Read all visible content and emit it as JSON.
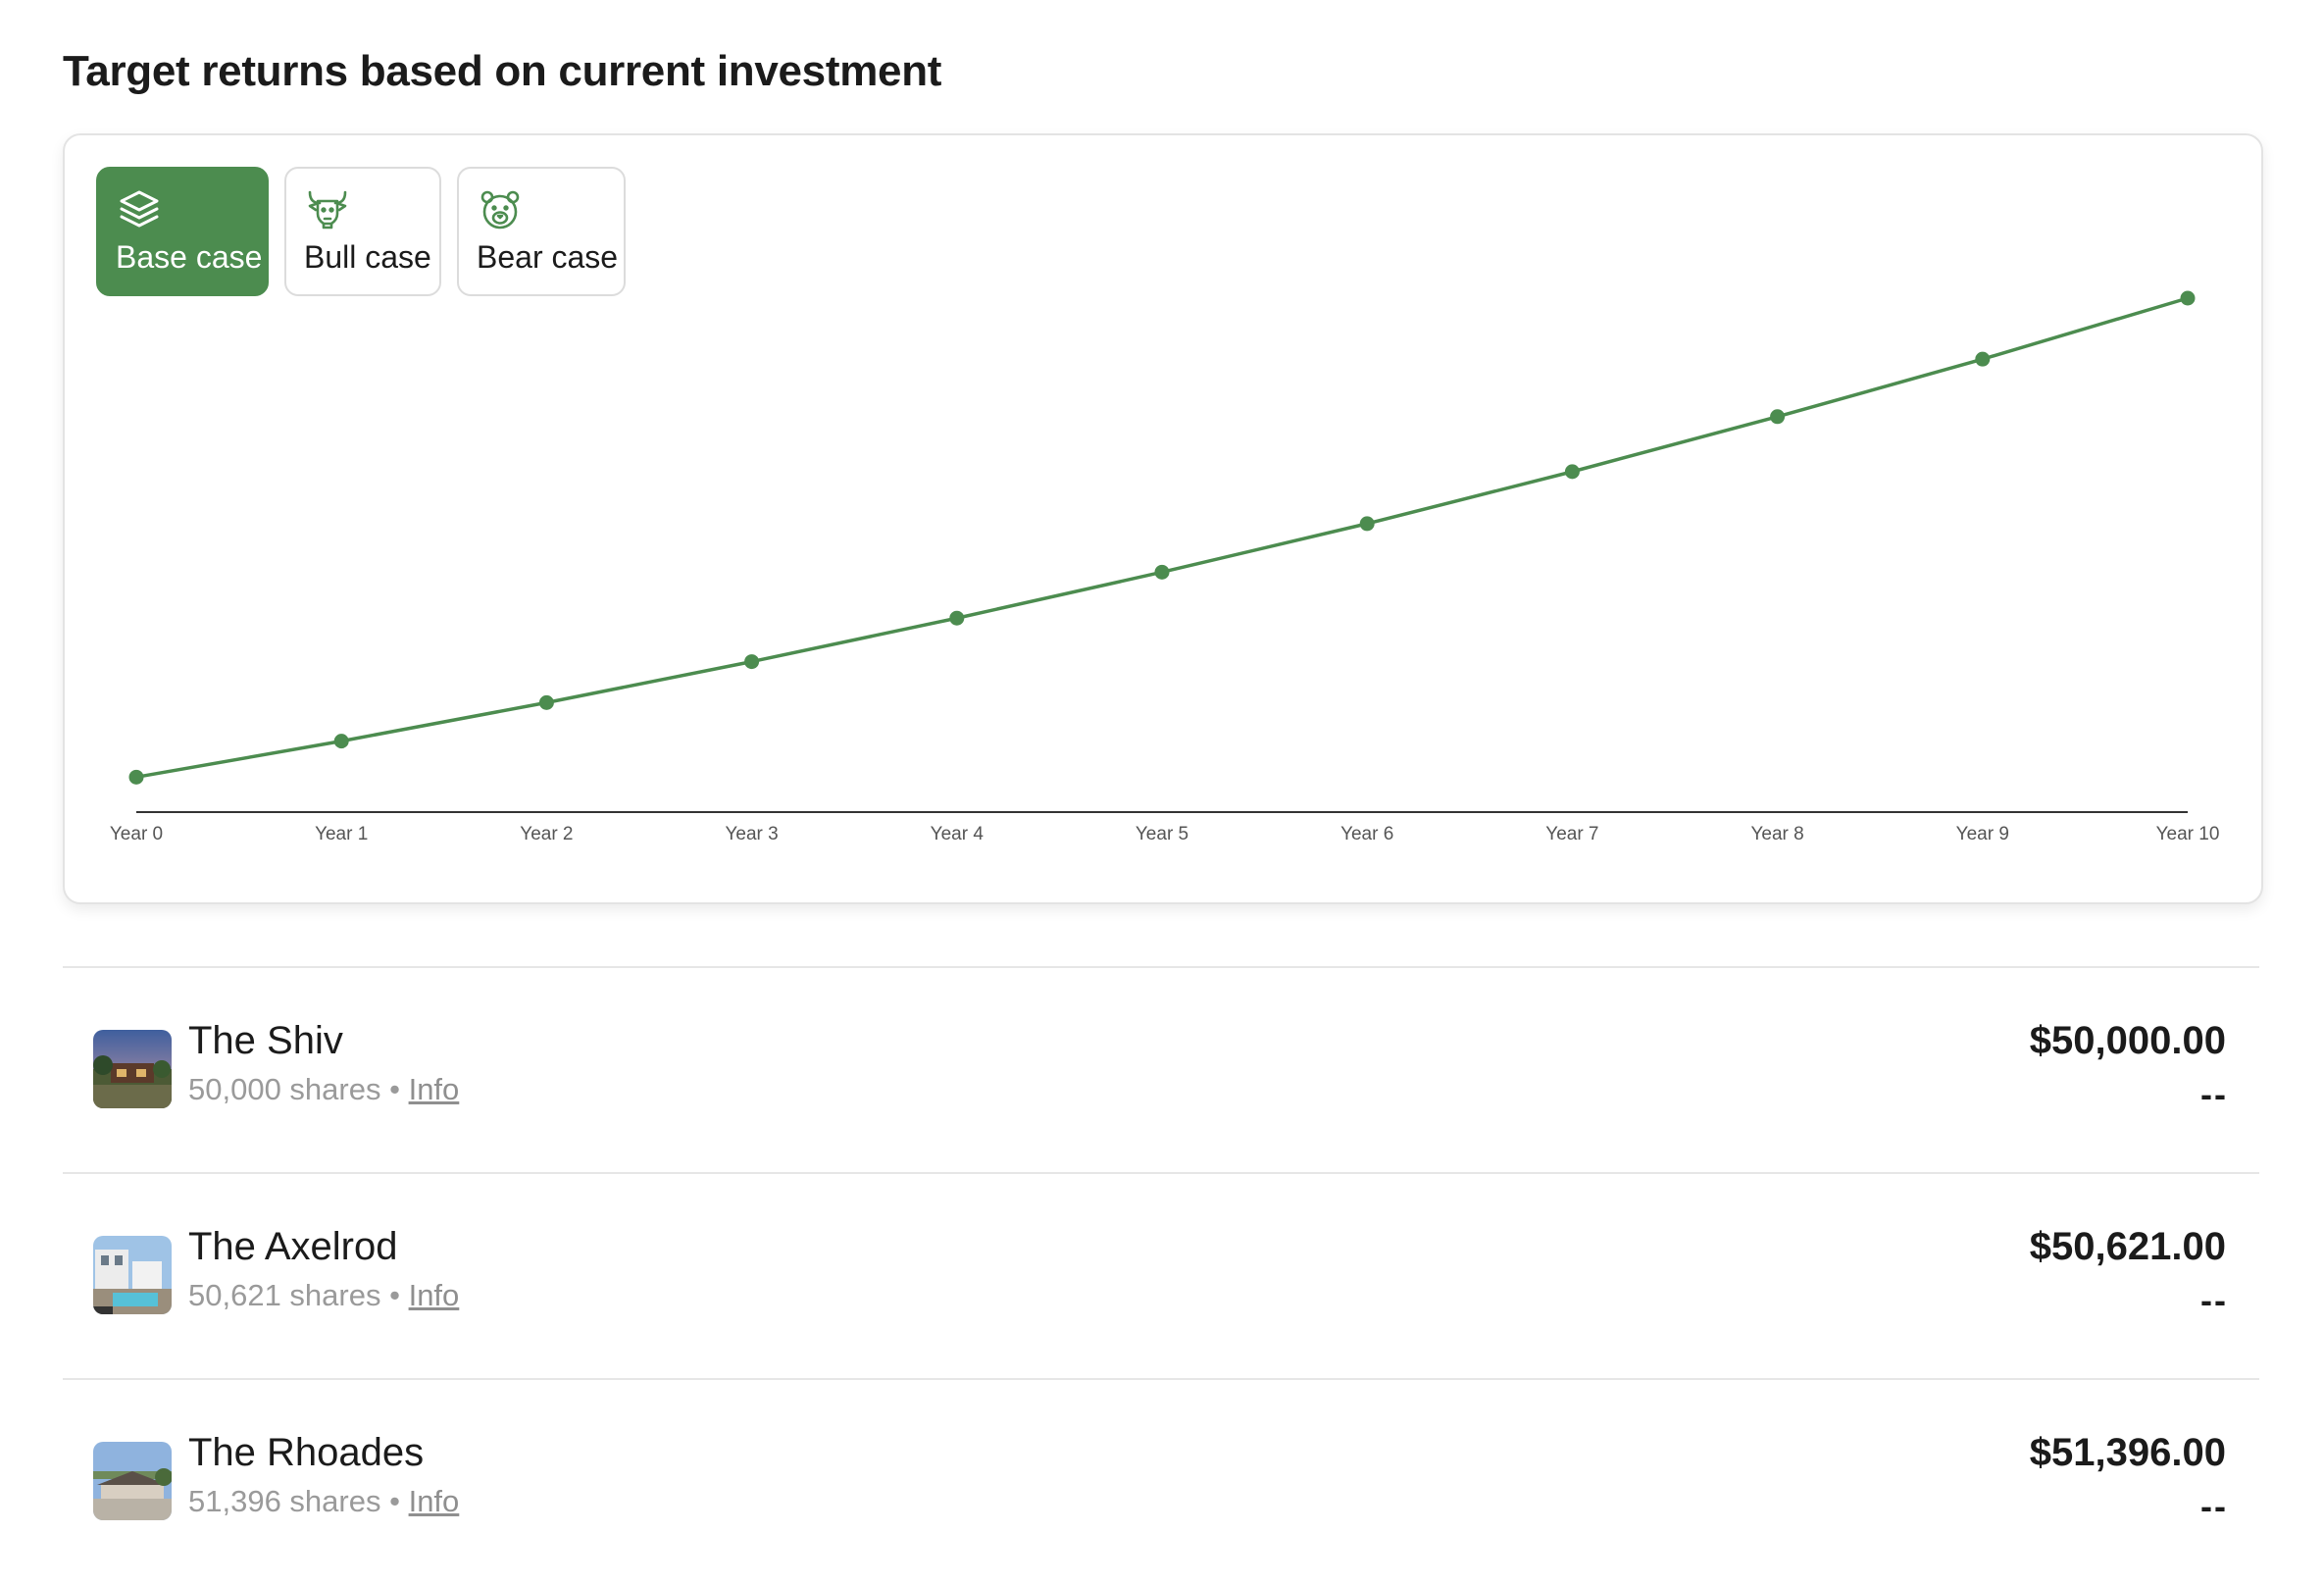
{
  "page": {
    "title": "Target returns based on current investment"
  },
  "tabs": [
    {
      "label": "Base case",
      "icon": "layers-icon",
      "active": true
    },
    {
      "label": "Bull case",
      "icon": "bull-icon",
      "active": false
    },
    {
      "label": "Bear case",
      "icon": "bear-icon",
      "active": false
    }
  ],
  "colors": {
    "accent": "#4c8c4f",
    "line": "#4c8c4f",
    "axis": "#333333",
    "border": "#e3e3e3"
  },
  "chart_data": {
    "type": "line",
    "title": "",
    "xlabel": "",
    "ylabel": "",
    "grid": false,
    "categories": [
      "Year 0",
      "Year 1",
      "Year 2",
      "Year 3",
      "Year 4",
      "Year 5",
      "Year 6",
      "Year 7",
      "Year 8",
      "Year 9",
      "Year 10"
    ],
    "series": [
      {
        "values": [
          7.0,
          14.2,
          21.9,
          30.1,
          38.8,
          48.0,
          57.7,
          68.1,
          79.1,
          90.6,
          102.8
        ]
      }
    ],
    "ylim": [
      0,
      102.8
    ]
  },
  "holdings": [
    {
      "name": "The Shiv",
      "shares": "50,000 shares",
      "separator": " • ",
      "info": "Info",
      "amount": "$50,000.00",
      "change": "--"
    },
    {
      "name": "The Axelrod",
      "shares": "50,621 shares",
      "separator": " • ",
      "info": "Info",
      "amount": "$50,621.00",
      "change": "--"
    },
    {
      "name": "The Rhoades",
      "shares": "51,396 shares",
      "separator": " • ",
      "info": "Info",
      "amount": "$51,396.00",
      "change": "--"
    }
  ]
}
